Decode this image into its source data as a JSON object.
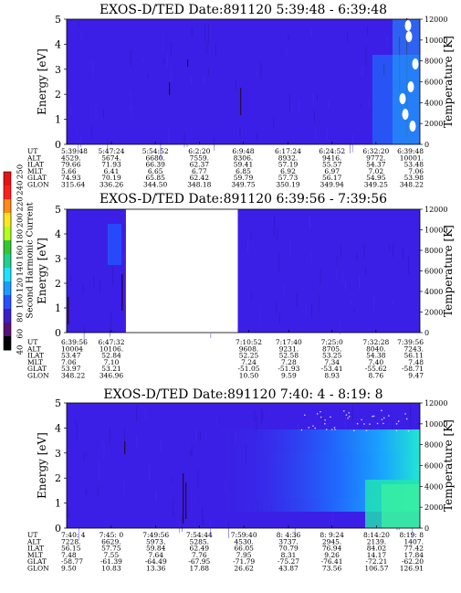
{
  "colorbar": {
    "label": "Second Harmonic Current",
    "ticks": [
      "40",
      "60",
      "80",
      "100",
      "120",
      "140",
      "160",
      "180",
      "200",
      "220",
      "240",
      "250"
    ],
    "stops": [
      "#000000",
      "#5a0f78",
      "#3c1ec8",
      "#2850ff",
      "#1e9bff",
      "#1ee1ff",
      "#1ed28c",
      "#32c832",
      "#b4ff1e",
      "#ffe61e",
      "#ff8c14",
      "#ff1e1e",
      "#e61414"
    ]
  },
  "colors": {
    "background": "#3b1fe6",
    "data_gap": "#ffffff"
  },
  "row_labels": [
    "UT",
    "ALT",
    "ILAT",
    "MLT",
    "GLAT",
    "GLON"
  ],
  "chart_data": [
    {
      "type": "heatmap",
      "title": "EXOS-D/TED",
      "date": "Date:891120",
      "time_range": "5:39:48 - 6:39:48",
      "ylabel": "Energy [eV]",
      "y2label": "Temperature [K]",
      "ylim": [
        0,
        5
      ],
      "yticks": [
        "0",
        "1",
        "2",
        "3",
        "4",
        "5"
      ],
      "y2lim": [
        0,
        12000
      ],
      "y2ticks": [
        "0",
        "2000",
        "4000",
        "6000",
        "8000",
        "10000",
        "12000"
      ],
      "rows": {
        "UT": [
          "5:39:48",
          "5:47:24",
          "5:54:52",
          "6:2:20",
          "6:9:48",
          "6:17:24",
          "6:24:52",
          "6:32:20",
          "6:39:48"
        ],
        "ALT": [
          "4529.",
          "5674.",
          "6680.",
          "7559.",
          "8306.",
          "8932.",
          "9416.",
          "9772.",
          "10001."
        ],
        "ILAT": [
          "79.66",
          "71.93",
          "66.39",
          "62.37",
          "59.41",
          "57.19",
          "55.57",
          "54.37",
          "53.48"
        ],
        "MLT": [
          "5.66",
          "6.41",
          "6.65",
          "6.77",
          "6.85",
          "6.92",
          "6.97",
          "7.02",
          "7.06"
        ],
        "GLAT": [
          "74.93",
          "70.19",
          "65.85",
          "62.42",
          "59.79",
          "57.73",
          "56.17",
          "54.95",
          "53.98"
        ],
        "GLON": [
          "315.64",
          "336.26",
          "344.50",
          "348.18",
          "349.75",
          "350.19",
          "349.94",
          "349.25",
          "348.22"
        ]
      },
      "gap": null
    },
    {
      "type": "heatmap",
      "title": "EXOS-D/TED",
      "date": "Date:891120",
      "time_range": "6:39:56 - 7:39:56",
      "ylabel": "Energy [eV]",
      "y2label": "Temperature [K]",
      "ylim": [
        0,
        5
      ],
      "yticks": [
        "0",
        "1",
        "2",
        "3",
        "4",
        "5"
      ],
      "y2lim": [
        0,
        12000
      ],
      "y2ticks": [
        "0",
        "2000",
        "4000",
        "6000",
        "8000",
        "10000",
        "12000"
      ],
      "rows": {
        "UT": [
          "6:39:56",
          "6:47:32",
          "7:10:52",
          "7:17:40",
          "7:25:0",
          "7:32:28",
          "7:39:56"
        ],
        "ALT": [
          "10004",
          "10106.",
          "9608.",
          "9231.",
          "8705.",
          "8040.",
          "7243."
        ],
        "ILAT": [
          "53.47",
          "52.84",
          "52.25",
          "52.58",
          "53.25",
          "54.38",
          "56.11"
        ],
        "MLT": [
          "7.06",
          "7.10",
          "7.24",
          "7.28",
          "7.34",
          "7.40",
          "7.48"
        ],
        "GLAT": [
          "53.97",
          "53.21",
          "-51.05",
          "-51.93",
          "-53.41",
          "-55.62",
          "-58.71"
        ],
        "GLON": [
          "348.22",
          "346.96",
          "10.50",
          "9.59",
          "8.93",
          "8.76",
          "9.47"
        ]
      },
      "gap": [
        "6:50:00",
        "7:09:00"
      ]
    },
    {
      "type": "heatmap",
      "title": "EXOS-D/TED",
      "date": "Date:891120",
      "time_range": "7:40: 4 - 8:19: 8",
      "ylabel": "Energy [eV]",
      "y2label": "Temperature [K]",
      "ylim": [
        0,
        5
      ],
      "yticks": [
        "0",
        "1",
        "2",
        "3",
        "4",
        "5"
      ],
      "y2lim": [
        0,
        12000
      ],
      "y2ticks": [
        "0",
        "2000",
        "4000",
        "6000",
        "8000",
        "10000",
        "12000"
      ],
      "rows": {
        "UT": [
          "7:40: 4",
          "7:45: 0",
          "7:49:56",
          "7:54:44",
          "7:59:40",
          "8: 4:36",
          "8: 9:24",
          "8:14:20",
          "8:19: 8"
        ],
        "ALT": [
          "7228.",
          "6629.",
          "5973.",
          "5285.",
          "4530.",
          "3737.",
          "2945.",
          "2139.",
          "1407."
        ],
        "ILAT": [
          "56.15",
          "57.75",
          "59.84",
          "62.49",
          "66.05",
          "70.79",
          "76.94",
          "84.02",
          "77.42"
        ],
        "MLT": [
          "7.48",
          "7.55",
          "7.64",
          "7.76",
          "7.95",
          "8.31",
          "9.26",
          "14.17",
          "17.84"
        ],
        "GLAT": [
          "-58.77",
          "-61.39",
          "-64.49",
          "-67.95",
          "-71.79",
          "-75.27",
          "-76.41",
          "-72.21",
          "-62.20"
        ],
        "GLON": [
          "9.50",
          "10.83",
          "13.36",
          "17.88",
          "26.62",
          "43.87",
          "73.56",
          "106.57",
          "126.91"
        ]
      },
      "gap": null
    }
  ]
}
